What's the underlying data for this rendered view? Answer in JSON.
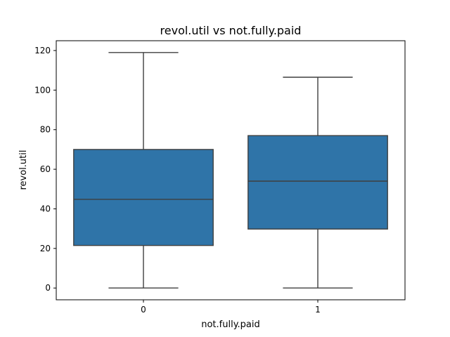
{
  "chart_data": {
    "type": "box",
    "title": "revol.util vs not.fully.paid",
    "xlabel": "not.fully.paid",
    "ylabel": "revol.util",
    "categories": [
      "0",
      "1"
    ],
    "boxes": [
      {
        "category": "0",
        "whisker_low": 0,
        "q1": 21.5,
        "median": 44.8,
        "q3": 70.0,
        "whisker_high": 119.0
      },
      {
        "category": "1",
        "whisker_low": 0,
        "q1": 29.8,
        "median": 54.0,
        "q3": 77.0,
        "whisker_high": 106.5
      }
    ],
    "ylim": [
      -5.95,
      124.95
    ],
    "yticks": [
      0,
      20,
      40,
      60,
      80,
      100,
      120
    ],
    "box_color": "#2f74a8",
    "line_color": "#3f3f3f",
    "grid": false,
    "legend": false
  }
}
